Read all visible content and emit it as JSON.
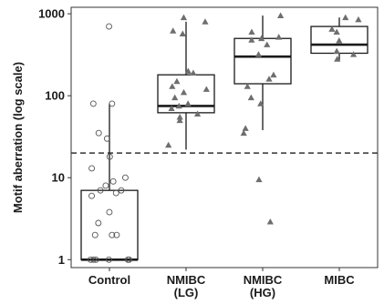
{
  "chart_data": {
    "type": "box",
    "ylabel": "Motif aberration (log scale)",
    "y_scale": "log10",
    "ylim": [
      0.8,
      1200
    ],
    "y_ticks": [
      1,
      10,
      100,
      1000
    ],
    "y_tick_labels": [
      "1",
      "10",
      "100",
      "1000"
    ],
    "threshold": 20,
    "categories": [
      {
        "label": [
          "Control"
        ],
        "marker": "circle"
      },
      {
        "label": [
          "NMIBC",
          "(LG)"
        ],
        "marker": "triangle"
      },
      {
        "label": [
          "NMIBC",
          "(HG)"
        ],
        "marker": "triangle"
      },
      {
        "label": [
          "MIBC"
        ],
        "marker": "triangle"
      }
    ],
    "boxes": [
      {
        "q1": 1,
        "median": 1,
        "q3": 7,
        "whisker_low": 1,
        "whisker_high": 80
      },
      {
        "q1": 62,
        "median": 75,
        "q3": 180,
        "whisker_low": 22,
        "whisker_high": 800
      },
      {
        "q1": 140,
        "median": 300,
        "q3": 500,
        "whisker_low": 38,
        "whisker_high": 950
      },
      {
        "q1": 330,
        "median": 420,
        "q3": 700,
        "whisker_low": 270,
        "whisker_high": 900
      }
    ],
    "points": [
      [
        700,
        80,
        80,
        35,
        30,
        18,
        13,
        10,
        9,
        8,
        7,
        7,
        6.5,
        6,
        3.8,
        2.8,
        2,
        2,
        2,
        1,
        1,
        1,
        1,
        1,
        1
      ],
      [
        900,
        800,
        620,
        570,
        200,
        190,
        150,
        130,
        120,
        110,
        95,
        80,
        75,
        70,
        60,
        55,
        50,
        25
      ],
      [
        950,
        600,
        520,
        500,
        480,
        420,
        320,
        180,
        160,
        130,
        95,
        80,
        40,
        35,
        9.5,
        2.9
      ],
      [
        900,
        850,
        650,
        600,
        470,
        350,
        320,
        280
      ]
    ],
    "colors": {
      "circle_stroke": "#555555",
      "triangle_fill": "#6e6e6e",
      "box_stroke": "#1a1a1a",
      "threshold": "#333333"
    }
  }
}
